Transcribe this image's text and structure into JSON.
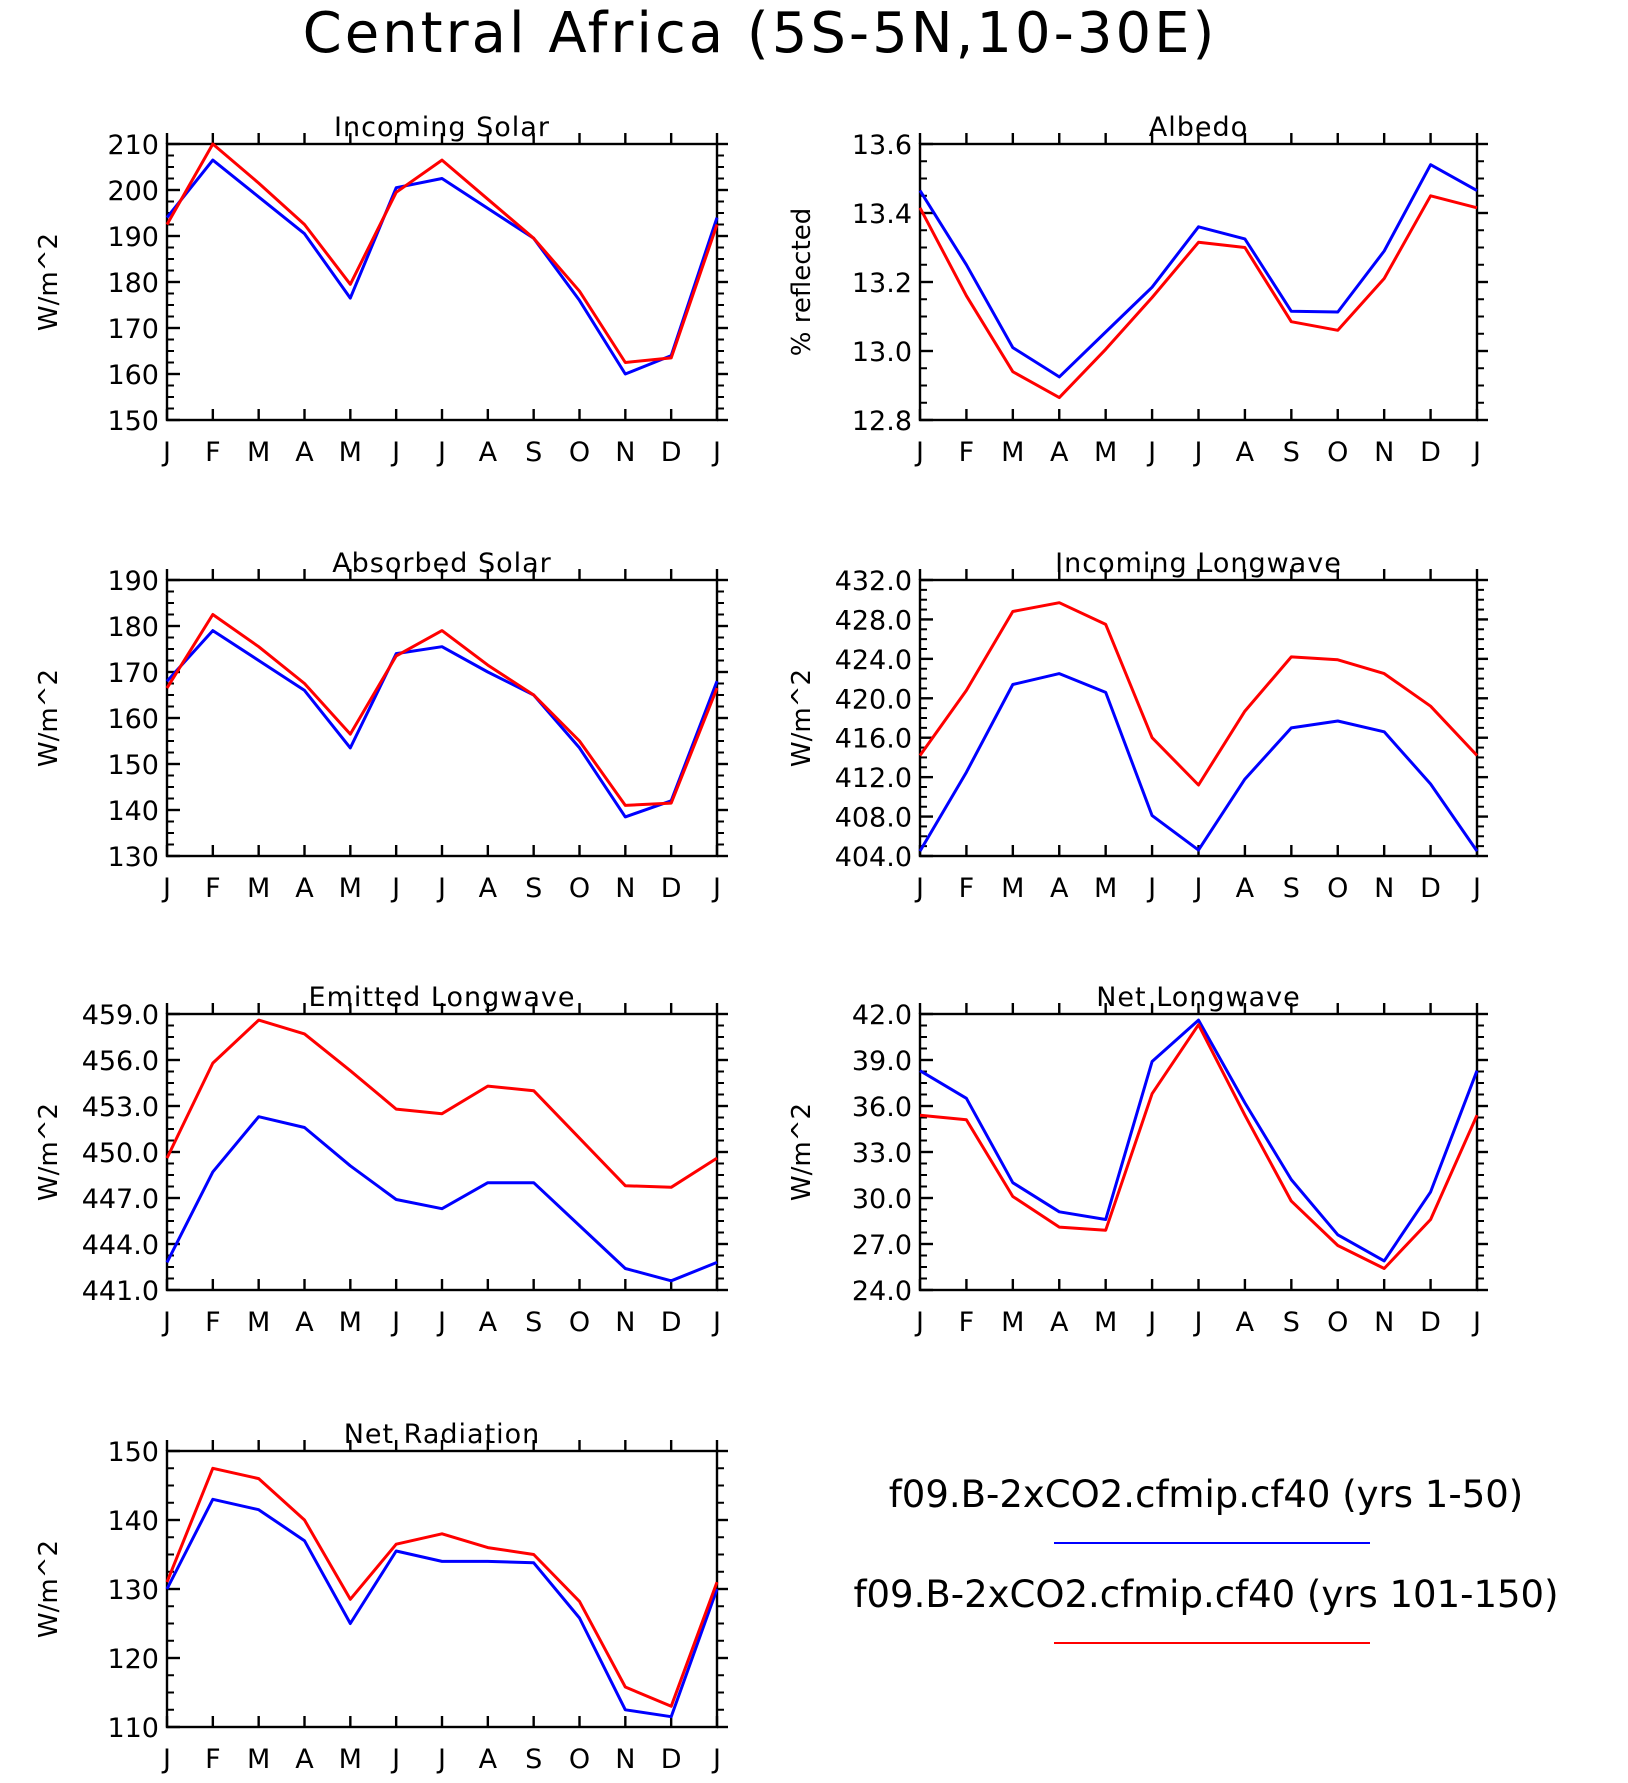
{
  "figure_title": "Central Africa (5S-5N,10-30E)",
  "legend": [
    {
      "label": "f09.B-2xCO2.cfmip.cf40 (yrs 1-50)",
      "color": "#0000ff"
    },
    {
      "label": "f09.B-2xCO2.cfmip.cf40 (yrs 101-150)",
      "color": "#ff0000"
    }
  ],
  "colors": {
    "blue": "#0000ff",
    "red": "#ff0000",
    "axes": "#000000"
  },
  "chart_data": [
    {
      "type": "line",
      "title": "Incoming Solar",
      "ylabel": "W/m^2",
      "categories": [
        "J",
        "F",
        "M",
        "A",
        "M",
        "J",
        "J",
        "A",
        "S",
        "O",
        "N",
        "D",
        "J"
      ],
      "ylim": [
        150,
        210
      ],
      "yticks": [
        "150",
        "160",
        "170",
        "180",
        "190",
        "200",
        "210"
      ],
      "series": [
        {
          "color": "#0000ff",
          "values": [
            194,
            206.5,
            198.5,
            190.5,
            176.5,
            200.5,
            202.5,
            196,
            189.5,
            176,
            160,
            164,
            194
          ]
        },
        {
          "color": "#ff0000",
          "values": [
            192.5,
            210,
            201.5,
            192.5,
            179.5,
            199.5,
            206.5,
            198,
            189.5,
            178,
            162.5,
            163.5,
            192.5
          ]
        }
      ]
    },
    {
      "type": "line",
      "title": "Albedo",
      "ylabel": "% reflected",
      "categories": [
        "J",
        "F",
        "M",
        "A",
        "M",
        "J",
        "J",
        "A",
        "S",
        "O",
        "N",
        "D",
        "J"
      ],
      "ylim": [
        12.8,
        13.6
      ],
      "yticks": [
        "12.8",
        "13.0",
        "13.2",
        "13.4",
        "13.6"
      ],
      "series": [
        {
          "color": "#0000ff",
          "values": [
            13.465,
            13.25,
            13.01,
            12.925,
            13.055,
            13.185,
            13.36,
            13.325,
            13.115,
            13.113,
            13.29,
            13.54,
            13.465
          ]
        },
        {
          "color": "#ff0000",
          "values": [
            13.415,
            13.16,
            12.94,
            12.865,
            13.005,
            13.155,
            13.315,
            13.3,
            13.085,
            13.06,
            13.21,
            13.45,
            13.415
          ]
        }
      ]
    },
    {
      "type": "line",
      "title": "Absorbed Solar",
      "ylabel": "W/m^2",
      "categories": [
        "J",
        "F",
        "M",
        "A",
        "M",
        "J",
        "J",
        "A",
        "S",
        "O",
        "N",
        "D",
        "J"
      ],
      "ylim": [
        130,
        190
      ],
      "yticks": [
        "130",
        "140",
        "150",
        "160",
        "170",
        "180",
        "190"
      ],
      "series": [
        {
          "color": "#0000ff",
          "values": [
            168,
            179,
            172.5,
            166,
            153.5,
            174,
            175.5,
            170,
            165,
            153.5,
            138.5,
            142,
            168
          ]
        },
        {
          "color": "#ff0000",
          "values": [
            166.5,
            182.5,
            175.5,
            167.5,
            156.5,
            173.5,
            179,
            171.5,
            165,
            155,
            141,
            141.5,
            166.5
          ]
        }
      ]
    },
    {
      "type": "line",
      "title": "Incoming Longwave",
      "ylabel": "W/m^2",
      "categories": [
        "J",
        "F",
        "M",
        "A",
        "M",
        "J",
        "J",
        "A",
        "S",
        "O",
        "N",
        "D",
        "J"
      ],
      "ylim": [
        404,
        432
      ],
      "yticks": [
        "404.0",
        "408.0",
        "412.0",
        "416.0",
        "420.0",
        "424.0",
        "428.0",
        "432.0"
      ],
      "series": [
        {
          "color": "#0000ff",
          "values": [
            404.5,
            412.5,
            421.4,
            422.5,
            420.6,
            408.1,
            404.6,
            411.8,
            417,
            417.7,
            416.6,
            411.3,
            404.5
          ]
        },
        {
          "color": "#ff0000",
          "values": [
            414.2,
            420.8,
            428.8,
            429.7,
            427.5,
            416,
            411.2,
            418.7,
            424.2,
            423.9,
            422.5,
            419.2,
            414.2
          ]
        }
      ]
    },
    {
      "type": "line",
      "title": "Emitted Longwave",
      "ylabel": "W/m^2",
      "categories": [
        "J",
        "F",
        "M",
        "A",
        "M",
        "J",
        "J",
        "A",
        "S",
        "O",
        "N",
        "D",
        "J"
      ],
      "ylim": [
        441,
        459
      ],
      "yticks": [
        "441.0",
        "444.0",
        "447.0",
        "450.0",
        "453.0",
        "456.0",
        "459.0"
      ],
      "series": [
        {
          "color": "#0000ff",
          "values": [
            442.8,
            448.7,
            452.3,
            451.6,
            449.1,
            446.9,
            446.3,
            448,
            448,
            445.2,
            442.4,
            441.6,
            442.8
          ]
        },
        {
          "color": "#ff0000",
          "values": [
            449.6,
            455.8,
            458.6,
            457.7,
            455.3,
            452.8,
            452.5,
            454.3,
            454,
            450.9,
            447.8,
            447.7,
            449.6
          ]
        }
      ]
    },
    {
      "type": "line",
      "title": "Net Longwave",
      "ylabel": "W/m^2",
      "categories": [
        "J",
        "F",
        "M",
        "A",
        "M",
        "J",
        "J",
        "A",
        "S",
        "O",
        "N",
        "D",
        "J"
      ],
      "ylim": [
        24,
        42
      ],
      "yticks": [
        "24.0",
        "27.0",
        "30.0",
        "33.0",
        "36.0",
        "39.0",
        "42.0"
      ],
      "series": [
        {
          "color": "#0000ff",
          "values": [
            38.3,
            36.5,
            31,
            29.1,
            28.6,
            38.9,
            41.6,
            36.2,
            31.2,
            27.6,
            25.9,
            30.4,
            38.3
          ]
        },
        {
          "color": "#ff0000",
          "values": [
            35.4,
            35.1,
            30.1,
            28.1,
            27.9,
            36.8,
            41.3,
            35.4,
            29.8,
            26.9,
            25.4,
            28.6,
            35.4
          ]
        }
      ]
    },
    {
      "type": "line",
      "title": "Net Radiation",
      "ylabel": "W/m^2",
      "categories": [
        "J",
        "F",
        "M",
        "A",
        "M",
        "J",
        "J",
        "A",
        "S",
        "O",
        "N",
        "D",
        "J"
      ],
      "ylim": [
        110,
        150
      ],
      "yticks": [
        "110",
        "120",
        "130",
        "140",
        "150"
      ],
      "series": [
        {
          "color": "#0000ff",
          "values": [
            130,
            143,
            141.5,
            137,
            125,
            135.5,
            134,
            134,
            133.8,
            125.8,
            112.5,
            111.5,
            130
          ]
        },
        {
          "color": "#ff0000",
          "values": [
            131,
            147.5,
            146,
            140,
            128.5,
            136.5,
            138,
            136,
            135,
            128.2,
            115.8,
            113,
            131
          ]
        }
      ]
    }
  ]
}
